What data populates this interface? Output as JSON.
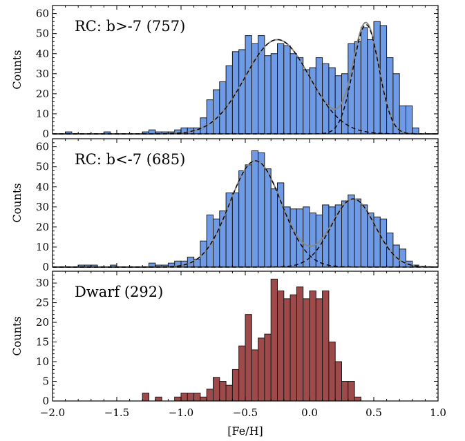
{
  "chart_data": [
    {
      "type": "bar",
      "title": "RC: b>-7 (757)",
      "ylabel": "Counts",
      "xlabel": "",
      "xlim": [
        -2.0,
        1.0
      ],
      "ylim": [
        0,
        64
      ],
      "yticks": [
        0,
        10,
        20,
        30,
        40,
        50,
        60
      ],
      "bin_width": 0.05,
      "bar_color": "#6f9ae6",
      "bin_left_edges": [
        -1.9,
        -1.6,
        -1.3,
        -1.25,
        -1.2,
        -1.15,
        -1.1,
        -1.05,
        -1.0,
        -0.95,
        -0.9,
        -0.85,
        -0.8,
        -0.75,
        -0.7,
        -0.65,
        -0.6,
        -0.55,
        -0.5,
        -0.45,
        -0.4,
        -0.35,
        -0.3,
        -0.25,
        -0.2,
        -0.15,
        -0.1,
        -0.05,
        0.0,
        0.05,
        0.1,
        0.15,
        0.2,
        0.25,
        0.3,
        0.35,
        0.4,
        0.45,
        0.5,
        0.55,
        0.6,
        0.65,
        0.7,
        0.75,
        0.8
      ],
      "counts": [
        1,
        1,
        1,
        2,
        1,
        1,
        1,
        2,
        3,
        3,
        3,
        8,
        17,
        22,
        26,
        34,
        41,
        42,
        49,
        45,
        49,
        39,
        40,
        45,
        44,
        40,
        38,
        32,
        33,
        38,
        35,
        33,
        29,
        30,
        45,
        46,
        53,
        47,
        56,
        54,
        38,
        30,
        14,
        14,
        3
      ],
      "fits": [
        {
          "style": "dashed",
          "color": "#000000",
          "mu": -0.25,
          "sigma": 0.25,
          "peak": 47
        },
        {
          "style": "dashed",
          "color": "#000000",
          "mu": 0.44,
          "sigma": 0.1,
          "peak": 54.5
        },
        {
          "style": "solid-sum",
          "color": "#888888"
        }
      ]
    },
    {
      "type": "bar",
      "title": "RC: b<-7 (685)",
      "ylabel": "Counts",
      "xlabel": "",
      "xlim": [
        -2.0,
        1.0
      ],
      "ylim": [
        0,
        64
      ],
      "yticks": [
        0,
        10,
        20,
        30,
        40,
        50,
        60
      ],
      "bin_width": 0.05,
      "bar_color": "#6f9ae6",
      "bin_left_edges": [
        -1.8,
        -1.75,
        -1.7,
        -1.55,
        -1.25,
        -1.2,
        -1.15,
        -1.1,
        -1.05,
        -1.0,
        -0.95,
        -0.9,
        -0.85,
        -0.8,
        -0.75,
        -0.7,
        -0.65,
        -0.6,
        -0.55,
        -0.5,
        -0.45,
        -0.4,
        -0.35,
        -0.3,
        -0.25,
        -0.2,
        -0.15,
        -0.1,
        -0.05,
        0.0,
        0.05,
        0.1,
        0.15,
        0.2,
        0.25,
        0.3,
        0.35,
        0.4,
        0.45,
        0.5,
        0.55,
        0.6,
        0.65,
        0.7,
        0.75,
        0.8
      ],
      "counts": [
        1,
        1,
        1,
        1,
        2,
        1,
        1,
        2,
        3,
        3,
        5,
        4,
        13,
        26,
        24,
        28,
        37,
        37,
        48,
        51,
        58,
        57,
        49,
        39,
        42,
        30,
        29,
        29,
        30,
        27,
        26,
        31,
        30,
        31,
        33,
        36,
        34,
        31,
        27,
        25,
        24,
        17,
        11,
        9,
        3,
        1
      ],
      "fits": [
        {
          "style": "dashed",
          "color": "#000000",
          "mu": -0.42,
          "sigma": 0.2,
          "peak": 53
        },
        {
          "style": "dashed",
          "color": "#000000",
          "mu": 0.34,
          "sigma": 0.17,
          "peak": 34
        },
        {
          "style": "solid-sum",
          "color": "#888888"
        }
      ]
    },
    {
      "type": "bar",
      "title": "Dwarf (292)",
      "ylabel": "Counts",
      "xlabel": "[Fe/H]",
      "xlim": [
        -2.0,
        1.0
      ],
      "ylim": [
        0,
        33
      ],
      "yticks": [
        0,
        5,
        10,
        15,
        20,
        25,
        30
      ],
      "xticks": [
        -2.0,
        -1.5,
        -1.0,
        -0.5,
        0.0,
        0.5,
        1.0
      ],
      "xtick_labels": [
        "−2.0",
        "−1.5",
        "−1.0",
        "−0.5",
        "0.0",
        "0.5",
        "1.0"
      ],
      "bin_width": 0.05,
      "bar_color": "#9e4a4a",
      "bin_left_edges": [
        -1.3,
        -1.2,
        -1.05,
        -1.0,
        -0.95,
        -0.9,
        -0.85,
        -0.8,
        -0.75,
        -0.7,
        -0.65,
        -0.6,
        -0.55,
        -0.5,
        -0.45,
        -0.4,
        -0.35,
        -0.3,
        -0.25,
        -0.2,
        -0.15,
        -0.1,
        -0.05,
        0.0,
        0.05,
        0.1,
        0.15,
        0.2,
        0.25,
        0.3,
        0.35
      ],
      "counts": [
        2,
        1,
        1,
        2,
        2,
        2,
        1,
        3,
        6,
        5,
        4,
        8,
        14,
        22,
        13,
        16,
        17,
        31,
        28,
        26,
        27,
        29,
        26,
        28,
        26,
        28,
        15,
        10,
        5,
        5,
        1
      ]
    }
  ]
}
